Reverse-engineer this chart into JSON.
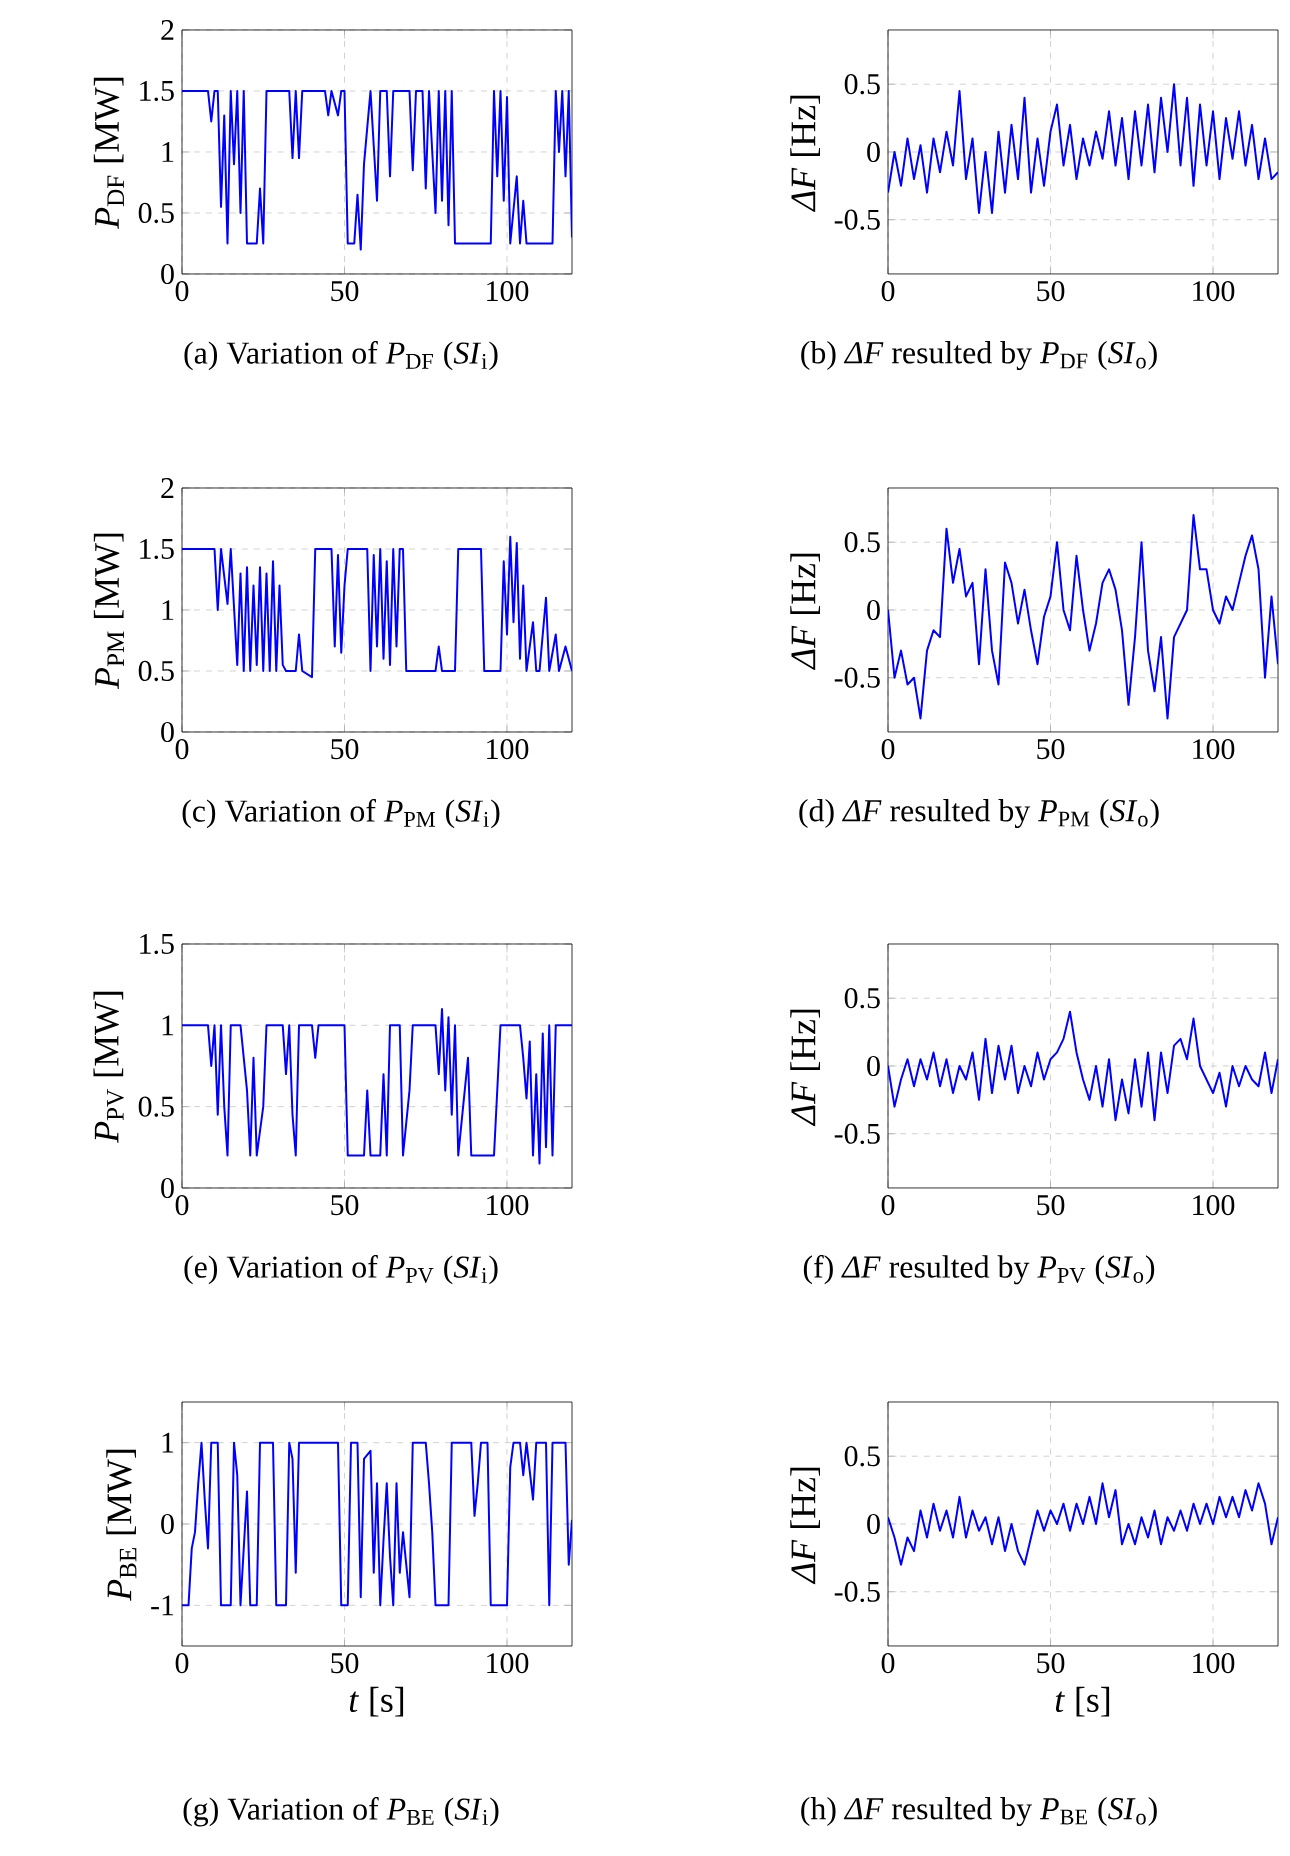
{
  "chart_data": [
    {
      "type": "line",
      "title": "(a) Variation of *P*$_{DF}$ (*SI*$_{i}$)",
      "ylabel": "*P*$_{DF}$ [MW]",
      "color": "#0000ff",
      "grid": true,
      "xlim": [
        0,
        120
      ],
      "ylim": [
        0,
        2
      ],
      "xticks": [
        0,
        50,
        100
      ],
      "yticks": [
        0,
        0.5,
        1,
        1.5,
        2
      ],
      "x": [
        0,
        8,
        9,
        10,
        11,
        12,
        13,
        14,
        15,
        16,
        17,
        18,
        19,
        20,
        23,
        24,
        25,
        26,
        33,
        34,
        35,
        36,
        37,
        44,
        45,
        46,
        48,
        49,
        50,
        51,
        53,
        54,
        55,
        56,
        58,
        60,
        61,
        63,
        64,
        65,
        70,
        71,
        72,
        74,
        75,
        76,
        78,
        79,
        80,
        81,
        82,
        83,
        84,
        95,
        96,
        97,
        98,
        99,
        100,
        101,
        103,
        104,
        105,
        106,
        114,
        115,
        116,
        117,
        118,
        119,
        120
      ],
      "values": [
        1.5,
        1.5,
        1.25,
        1.5,
        1.5,
        0.55,
        1.3,
        0.25,
        1.5,
        0.9,
        1.5,
        0.5,
        1.5,
        0.25,
        0.25,
        0.7,
        0.25,
        1.5,
        1.5,
        0.95,
        1.5,
        0.95,
        1.5,
        1.5,
        1.3,
        1.5,
        1.3,
        1.5,
        1.5,
        0.25,
        0.25,
        0.65,
        0.2,
        0.9,
        1.5,
        0.6,
        1.5,
        1.5,
        0.8,
        1.5,
        1.5,
        0.85,
        1.5,
        1.5,
        0.7,
        1.5,
        0.5,
        1.5,
        0.6,
        1.5,
        0.4,
        1.5,
        0.25,
        0.25,
        1.5,
        0.8,
        1.5,
        0.6,
        1.45,
        0.25,
        0.8,
        0.25,
        0.6,
        0.25,
        0.25,
        1.5,
        1.0,
        1.5,
        0.8,
        1.5,
        0.3
      ]
    },
    {
      "type": "line",
      "title": "(b) *ΔF* resulted by *P*$_{DF}$ (*SI*$_{o}$)",
      "ylabel": "*ΔF* [Hz]",
      "color": "#0000ff",
      "grid": true,
      "xlim": [
        0,
        120
      ],
      "ylim": [
        -0.9,
        0.9
      ],
      "xticks": [
        0,
        50,
        100
      ],
      "yticks": [
        -0.5,
        0,
        0.5
      ],
      "x": [
        0,
        2,
        4,
        6,
        8,
        10,
        12,
        14,
        16,
        18,
        20,
        22,
        24,
        26,
        28,
        30,
        32,
        34,
        36,
        38,
        40,
        42,
        44,
        46,
        48,
        50,
        52,
        54,
        56,
        58,
        60,
        62,
        64,
        66,
        68,
        70,
        72,
        74,
        76,
        78,
        80,
        82,
        84,
        86,
        88,
        90,
        92,
        94,
        96,
        98,
        100,
        102,
        104,
        106,
        108,
        110,
        112,
        114,
        116,
        118,
        120
      ],
      "values": [
        -0.3,
        0.0,
        -0.25,
        0.1,
        -0.2,
        0.05,
        -0.3,
        0.1,
        -0.15,
        0.15,
        -0.1,
        0.45,
        -0.2,
        0.1,
        -0.45,
        0.0,
        -0.45,
        0.15,
        -0.3,
        0.2,
        -0.2,
        0.4,
        -0.3,
        0.1,
        -0.25,
        0.15,
        0.35,
        -0.1,
        0.2,
        -0.2,
        0.1,
        -0.1,
        0.15,
        -0.05,
        0.3,
        -0.1,
        0.25,
        -0.2,
        0.3,
        -0.1,
        0.35,
        -0.15,
        0.4,
        0.0,
        0.5,
        -0.1,
        0.4,
        -0.25,
        0.35,
        -0.1,
        0.3,
        -0.2,
        0.25,
        -0.05,
        0.3,
        -0.1,
        0.2,
        -0.2,
        0.1,
        -0.2,
        -0.15
      ]
    },
    {
      "type": "line",
      "title": "(c) Variation of *P*$_{PM}$ (*SI*$_{i}$)",
      "ylabel": "*P*$_{PM}$ [MW]",
      "color": "#0000ff",
      "grid": true,
      "xlim": [
        0,
        120
      ],
      "ylim": [
        0,
        2
      ],
      "xticks": [
        0,
        50,
        100
      ],
      "yticks": [
        0,
        0.5,
        1,
        1.5,
        2
      ],
      "x": [
        0,
        10,
        11,
        12,
        14,
        15,
        17,
        18,
        19,
        20,
        21,
        22,
        23,
        24,
        25,
        26,
        27,
        28,
        29,
        30,
        31,
        32,
        35,
        36,
        37,
        40,
        41,
        46,
        47,
        48,
        49,
        50,
        51,
        57,
        58,
        59,
        60,
        61,
        62,
        63,
        64,
        65,
        66,
        67,
        68,
        69,
        78,
        79,
        80,
        84,
        85,
        92,
        93,
        98,
        99,
        100,
        101,
        102,
        103,
        104,
        105,
        106,
        108,
        109,
        110,
        112,
        113,
        115,
        116,
        118,
        120
      ],
      "values": [
        1.5,
        1.5,
        1.0,
        1.5,
        1.05,
        1.5,
        0.55,
        1.3,
        0.5,
        1.35,
        0.5,
        1.2,
        0.55,
        1.35,
        0.5,
        1.3,
        0.5,
        1.4,
        0.5,
        1.2,
        0.55,
        0.5,
        0.5,
        0.8,
        0.5,
        0.45,
        1.5,
        1.5,
        0.7,
        1.45,
        0.65,
        1.2,
        1.5,
        1.5,
        0.5,
        1.45,
        0.7,
        1.5,
        0.6,
        1.4,
        0.55,
        1.5,
        0.7,
        1.5,
        1.5,
        0.5,
        0.5,
        0.7,
        0.5,
        0.5,
        1.5,
        1.5,
        0.5,
        0.5,
        1.4,
        0.8,
        1.6,
        0.9,
        1.55,
        0.6,
        1.2,
        0.5,
        0.9,
        0.5,
        0.5,
        1.1,
        0.5,
        0.8,
        0.5,
        0.7,
        0.5
      ]
    },
    {
      "type": "line",
      "title": "(d) *ΔF* resulted by *P*$_{PM}$ (*SI*$_{o}$)",
      "ylabel": "*ΔF* [Hz]",
      "color": "#0000ff",
      "grid": true,
      "xlim": [
        0,
        120
      ],
      "ylim": [
        -0.9,
        0.9
      ],
      "xticks": [
        0,
        50,
        100
      ],
      "yticks": [
        -0.5,
        0,
        0.5
      ],
      "x": [
        0,
        2,
        4,
        6,
        8,
        10,
        12,
        14,
        16,
        18,
        20,
        22,
        24,
        26,
        28,
        30,
        32,
        34,
        36,
        38,
        40,
        42,
        44,
        46,
        48,
        50,
        52,
        54,
        56,
        58,
        60,
        62,
        64,
        66,
        68,
        70,
        72,
        74,
        76,
        78,
        80,
        82,
        84,
        86,
        88,
        90,
        92,
        94,
        96,
        98,
        100,
        102,
        104,
        106,
        108,
        110,
        112,
        114,
        116,
        118,
        120
      ],
      "values": [
        0.0,
        -0.5,
        -0.3,
        -0.55,
        -0.5,
        -0.8,
        -0.3,
        -0.15,
        -0.2,
        0.6,
        0.2,
        0.45,
        0.1,
        0.2,
        -0.4,
        0.3,
        -0.3,
        -0.55,
        0.35,
        0.2,
        -0.1,
        0.15,
        -0.15,
        -0.4,
        -0.05,
        0.1,
        0.5,
        0.0,
        -0.15,
        0.4,
        0.0,
        -0.3,
        -0.1,
        0.2,
        0.3,
        0.15,
        -0.15,
        -0.7,
        -0.2,
        0.5,
        -0.3,
        -0.6,
        -0.2,
        -0.8,
        -0.2,
        -0.1,
        0.0,
        0.7,
        0.3,
        0.3,
        0.0,
        -0.1,
        0.1,
        0.0,
        0.2,
        0.4,
        0.55,
        0.3,
        -0.5,
        0.1,
        -0.4
      ]
    },
    {
      "type": "line",
      "title": "(e) Variation of *P*$_{PV}$ (*SI*$_{i}$)",
      "ylabel": "*P*$_{PV}$ [MW]",
      "color": "#0000ff",
      "grid": true,
      "xlim": [
        0,
        120
      ],
      "ylim": [
        0,
        1.5
      ],
      "xticks": [
        0,
        50,
        100
      ],
      "yticks": [
        0,
        0.5,
        1,
        1.5
      ],
      "x": [
        0,
        8,
        9,
        10,
        11,
        12,
        13,
        14,
        15,
        18,
        19,
        20,
        21,
        22,
        23,
        25,
        26,
        31,
        32,
        33,
        34,
        35,
        36,
        40,
        41,
        42,
        50,
        51,
        56,
        57,
        58,
        61,
        62,
        63,
        64,
        67,
        68,
        70,
        71,
        78,
        79,
        80,
        81,
        82,
        83,
        84,
        85,
        88,
        89,
        96,
        98,
        104,
        105,
        106,
        107,
        108,
        109,
        110,
        111,
        112,
        113,
        114,
        115,
        120
      ],
      "values": [
        1.0,
        1.0,
        0.75,
        1.0,
        0.45,
        1.0,
        0.5,
        0.2,
        1.0,
        1.0,
        0.8,
        0.6,
        0.2,
        0.8,
        0.2,
        0.5,
        1.0,
        1.0,
        0.7,
        1.0,
        0.45,
        0.2,
        1.0,
        1.0,
        0.8,
        1.0,
        1.0,
        0.2,
        0.2,
        0.6,
        0.2,
        0.2,
        0.7,
        0.2,
        1.0,
        1.0,
        0.2,
        0.6,
        1.0,
        1.0,
        0.7,
        1.1,
        0.6,
        1.05,
        0.45,
        1.0,
        0.2,
        0.8,
        0.2,
        0.2,
        1.0,
        1.0,
        0.8,
        0.55,
        0.9,
        0.2,
        0.7,
        0.15,
        0.95,
        0.25,
        1.0,
        0.2,
        1.0,
        1.0
      ]
    },
    {
      "type": "line",
      "title": "(f) *ΔF* resulted by *P*$_{PV}$ (*SI*$_{o}$)",
      "ylabel": "*ΔF* [Hz]",
      "color": "#0000ff",
      "grid": true,
      "xlim": [
        0,
        120
      ],
      "ylim": [
        -0.9,
        0.9
      ],
      "xticks": [
        0,
        50,
        100
      ],
      "yticks": [
        -0.5,
        0,
        0.5
      ],
      "x": [
        0,
        2,
        4,
        6,
        8,
        10,
        12,
        14,
        16,
        18,
        20,
        22,
        24,
        26,
        28,
        30,
        32,
        34,
        36,
        38,
        40,
        42,
        44,
        46,
        48,
        50,
        52,
        54,
        56,
        58,
        60,
        62,
        64,
        66,
        68,
        70,
        72,
        74,
        76,
        78,
        80,
        82,
        84,
        86,
        88,
        90,
        92,
        94,
        96,
        98,
        100,
        102,
        104,
        106,
        108,
        110,
        112,
        114,
        116,
        118,
        120
      ],
      "values": [
        0.0,
        -0.3,
        -0.1,
        0.05,
        -0.15,
        0.05,
        -0.1,
        0.1,
        -0.15,
        0.05,
        -0.2,
        0.0,
        -0.1,
        0.1,
        -0.25,
        0.2,
        -0.2,
        0.15,
        -0.1,
        0.15,
        -0.2,
        0.0,
        -0.15,
        0.1,
        -0.1,
        0.05,
        0.1,
        0.2,
        0.4,
        0.1,
        -0.1,
        -0.25,
        0.0,
        -0.3,
        0.05,
        -0.4,
        -0.1,
        -0.35,
        0.05,
        -0.3,
        0.1,
        -0.4,
        0.1,
        -0.2,
        0.15,
        0.2,
        0.05,
        0.35,
        0.0,
        -0.1,
        -0.2,
        -0.05,
        -0.3,
        0.0,
        -0.15,
        0.0,
        -0.1,
        -0.15,
        0.1,
        -0.2,
        0.05
      ]
    },
    {
      "type": "line",
      "title": "(g) Variation of *P*$_{BE}$ (*SI*$_{i}$)",
      "ylabel": "*P*$_{BE}$ [MW]",
      "xlabel": "*t* [s]",
      "color": "#0000ff",
      "grid": true,
      "xlim": [
        0,
        120
      ],
      "ylim": [
        -1.5,
        1.5
      ],
      "xticks": [
        0,
        50,
        100
      ],
      "yticks": [
        -1,
        0,
        1
      ],
      "x": [
        0,
        2,
        3,
        4,
        5,
        6,
        7,
        8,
        9,
        11,
        12,
        15,
        16,
        17,
        18,
        20,
        21,
        23,
        24,
        28,
        29,
        32,
        33,
        34,
        35,
        36,
        48,
        49,
        51,
        52,
        54,
        55,
        56,
        58,
        59,
        60,
        61,
        62,
        63,
        64,
        65,
        66,
        67,
        68,
        70,
        71,
        75,
        76,
        77,
        78,
        82,
        83,
        89,
        90,
        91,
        92,
        94,
        95,
        100,
        101,
        102,
        104,
        105,
        106,
        108,
        109,
        112,
        113,
        114,
        118,
        119,
        120
      ],
      "values": [
        -1,
        -1,
        -0.3,
        -0.1,
        0.5,
        1,
        0.3,
        -0.3,
        1,
        1,
        -1,
        -1,
        1,
        0.6,
        -1,
        0.4,
        -1,
        -1,
        1,
        1,
        -1,
        -1,
        1,
        0.8,
        -0.6,
        1,
        1,
        -1,
        -1,
        1,
        1,
        -0.9,
        0.8,
        0.9,
        -0.6,
        0.5,
        -1,
        -0.2,
        0.5,
        -0.4,
        -1,
        0.5,
        -0.6,
        -0.1,
        -0.9,
        1,
        1,
        0.5,
        -0.1,
        -1,
        -1,
        1,
        1,
        0.1,
        0.5,
        1,
        1,
        -1,
        -1,
        0.7,
        1,
        1,
        0.6,
        1,
        0.3,
        1,
        1,
        -1,
        1,
        1,
        -0.5,
        0.05
      ]
    },
    {
      "type": "line",
      "title": "(h) *ΔF* resulted by *P*$_{BE}$ (*SI*$_{o}$)",
      "ylabel": "*ΔF* [Hz]",
      "xlabel": "*t* [s]",
      "color": "#0000ff",
      "grid": true,
      "xlim": [
        0,
        120
      ],
      "ylim": [
        -0.9,
        0.9
      ],
      "xticks": [
        0,
        50,
        100
      ],
      "yticks": [
        -0.5,
        0,
        0.5
      ],
      "x": [
        0,
        2,
        4,
        6,
        8,
        10,
        12,
        14,
        16,
        18,
        20,
        22,
        24,
        26,
        28,
        30,
        32,
        34,
        36,
        38,
        40,
        42,
        44,
        46,
        48,
        50,
        52,
        54,
        56,
        58,
        60,
        62,
        64,
        66,
        68,
        70,
        72,
        74,
        76,
        78,
        80,
        82,
        84,
        86,
        88,
        90,
        92,
        94,
        96,
        98,
        100,
        102,
        104,
        106,
        108,
        110,
        112,
        114,
        116,
        118,
        120
      ],
      "values": [
        0.05,
        -0.1,
        -0.3,
        -0.1,
        -0.2,
        0.1,
        -0.1,
        0.15,
        -0.05,
        0.1,
        -0.1,
        0.2,
        -0.1,
        0.1,
        -0.05,
        0.05,
        -0.15,
        0.05,
        -0.2,
        0.0,
        -0.2,
        -0.3,
        -0.1,
        0.1,
        -0.05,
        0.1,
        0.0,
        0.15,
        -0.05,
        0.15,
        0.0,
        0.2,
        0.0,
        0.3,
        0.05,
        0.25,
        -0.15,
        0.0,
        -0.15,
        0.05,
        -0.1,
        0.1,
        -0.15,
        0.05,
        -0.05,
        0.1,
        -0.05,
        0.15,
        0.0,
        0.15,
        0.0,
        0.2,
        0.05,
        0.2,
        0.05,
        0.25,
        0.1,
        0.3,
        0.15,
        -0.15,
        0.05
      ]
    }
  ]
}
